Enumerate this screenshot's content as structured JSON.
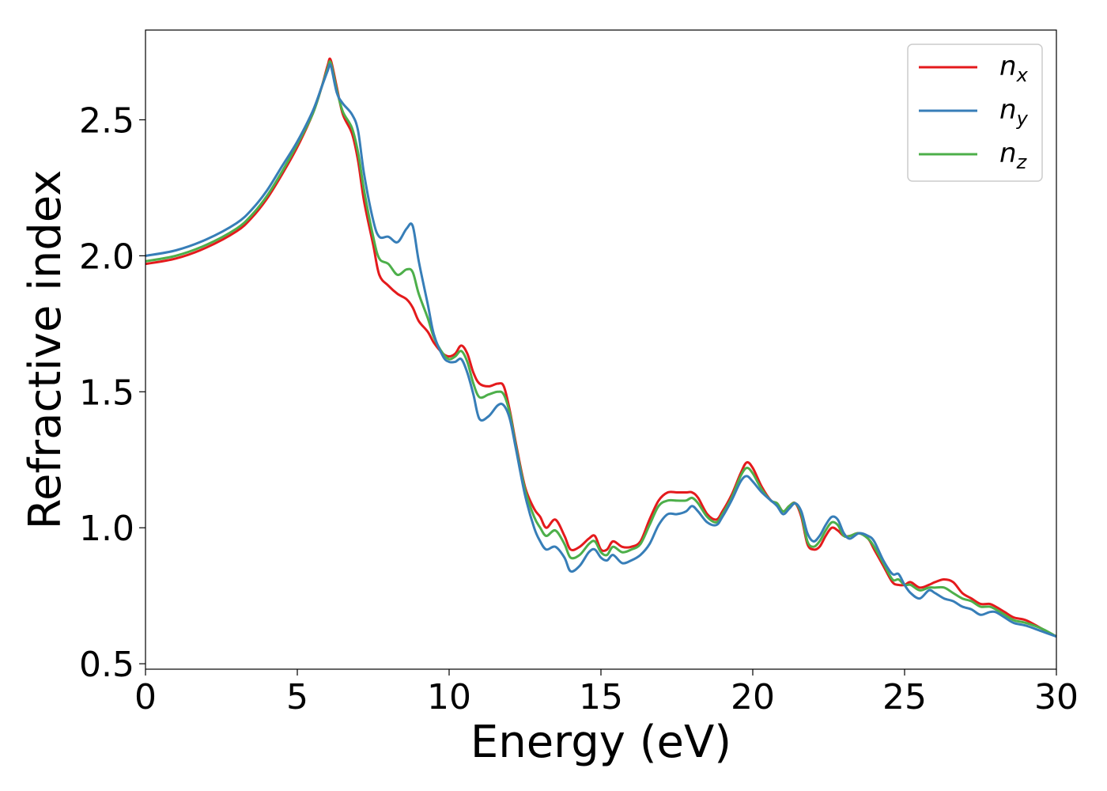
{
  "chart_data": {
    "type": "line",
    "title": "",
    "xlabel": "Energy (eV)",
    "ylabel": "Refractive index",
    "xlim": [
      0,
      30
    ],
    "ylim": [
      0.48,
      2.83
    ],
    "xticks": [
      0,
      5,
      10,
      15,
      20,
      25,
      30
    ],
    "xtick_labels": [
      "0",
      "5",
      "10",
      "15",
      "20",
      "25",
      "30"
    ],
    "yticks": [
      0.5,
      1.0,
      1.5,
      2.0,
      2.5
    ],
    "ytick_labels": [
      "0.5",
      "1.0",
      "1.5",
      "2.0",
      "2.5"
    ],
    "grid": false,
    "legend_position": "top-right",
    "series": [
      {
        "name": "n_x",
        "label_main": "n",
        "label_sub": "x",
        "color": "#e41a1c",
        "x": [
          0,
          1,
          2,
          3,
          3.5,
          4,
          4.5,
          5,
          5.5,
          5.8,
          6.0,
          6.1,
          6.3,
          6.5,
          6.8,
          7.0,
          7.2,
          7.5,
          7.7,
          8.0,
          8.3,
          8.6,
          8.8,
          9.0,
          9.3,
          9.5,
          9.8,
          10.0,
          10.2,
          10.4,
          10.6,
          10.8,
          11.0,
          11.3,
          11.6,
          11.8,
          12.0,
          12.2,
          12.5,
          12.8,
          13.0,
          13.2,
          13.5,
          13.8,
          14.0,
          14.3,
          14.6,
          14.8,
          15.0,
          15.2,
          15.4,
          15.7,
          16.0,
          16.3,
          16.6,
          16.9,
          17.2,
          17.5,
          17.8,
          18.0,
          18.2,
          18.5,
          18.8,
          19.0,
          19.3,
          19.6,
          19.8,
          20.0,
          20.3,
          20.6,
          20.8,
          21.0,
          21.2,
          21.4,
          21.6,
          21.8,
          22.0,
          22.2,
          22.4,
          22.6,
          22.8,
          23.0,
          23.2,
          23.5,
          23.8,
          24.0,
          24.3,
          24.6,
          24.8,
          25.0,
          25.2,
          25.5,
          25.8,
          26.0,
          26.3,
          26.6,
          26.9,
          27.2,
          27.5,
          27.8,
          28.0,
          28.3,
          28.6,
          29.0,
          29.5,
          30.0
        ],
        "y": [
          1.97,
          1.99,
          2.03,
          2.09,
          2.14,
          2.21,
          2.3,
          2.4,
          2.52,
          2.62,
          2.7,
          2.72,
          2.62,
          2.52,
          2.45,
          2.35,
          2.2,
          2.04,
          1.93,
          1.89,
          1.86,
          1.84,
          1.81,
          1.76,
          1.72,
          1.68,
          1.64,
          1.63,
          1.64,
          1.67,
          1.64,
          1.57,
          1.53,
          1.52,
          1.53,
          1.52,
          1.43,
          1.31,
          1.15,
          1.07,
          1.04,
          1.0,
          1.03,
          0.97,
          0.92,
          0.93,
          0.96,
          0.97,
          0.92,
          0.92,
          0.95,
          0.93,
          0.93,
          0.95,
          1.03,
          1.1,
          1.13,
          1.13,
          1.13,
          1.13,
          1.11,
          1.05,
          1.03,
          1.06,
          1.12,
          1.2,
          1.24,
          1.22,
          1.15,
          1.1,
          1.09,
          1.06,
          1.08,
          1.09,
          1.04,
          0.94,
          0.92,
          0.93,
          0.97,
          1.0,
          0.99,
          0.97,
          0.97,
          0.98,
          0.96,
          0.92,
          0.86,
          0.8,
          0.79,
          0.79,
          0.8,
          0.78,
          0.79,
          0.8,
          0.81,
          0.8,
          0.76,
          0.74,
          0.72,
          0.72,
          0.71,
          0.69,
          0.67,
          0.66,
          0.63,
          0.6
        ]
      },
      {
        "name": "n_y",
        "label_main": "n",
        "label_sub": "y",
        "color": "#377eb8",
        "x": [
          0,
          1,
          2,
          3,
          3.5,
          4,
          4.5,
          5,
          5.5,
          5.8,
          6.0,
          6.1,
          6.3,
          6.5,
          6.8,
          7.0,
          7.2,
          7.5,
          7.7,
          8.0,
          8.3,
          8.6,
          8.8,
          9.0,
          9.3,
          9.5,
          9.8,
          10.0,
          10.2,
          10.4,
          10.6,
          10.8,
          11.0,
          11.3,
          11.6,
          11.8,
          12.0,
          12.2,
          12.5,
          12.8,
          13.0,
          13.2,
          13.5,
          13.8,
          14.0,
          14.3,
          14.6,
          14.8,
          15.0,
          15.2,
          15.4,
          15.7,
          16.0,
          16.3,
          16.6,
          16.9,
          17.2,
          17.5,
          17.8,
          18.0,
          18.2,
          18.5,
          18.8,
          19.0,
          19.3,
          19.6,
          19.8,
          20.0,
          20.3,
          20.6,
          20.8,
          21.0,
          21.2,
          21.4,
          21.6,
          21.8,
          22.0,
          22.2,
          22.4,
          22.6,
          22.8,
          23.0,
          23.2,
          23.5,
          23.8,
          24.0,
          24.3,
          24.6,
          24.8,
          25.0,
          25.2,
          25.5,
          25.8,
          26.0,
          26.3,
          26.6,
          26.9,
          27.2,
          27.5,
          27.8,
          28.0,
          28.3,
          28.6,
          29.0,
          29.5,
          30.0
        ],
        "y": [
          2.0,
          2.02,
          2.06,
          2.12,
          2.17,
          2.24,
          2.33,
          2.42,
          2.53,
          2.62,
          2.68,
          2.7,
          2.6,
          2.56,
          2.52,
          2.46,
          2.3,
          2.13,
          2.07,
          2.07,
          2.05,
          2.1,
          2.11,
          1.98,
          1.82,
          1.71,
          1.63,
          1.61,
          1.61,
          1.62,
          1.57,
          1.49,
          1.4,
          1.41,
          1.45,
          1.45,
          1.4,
          1.29,
          1.12,
          1.0,
          0.95,
          0.92,
          0.93,
          0.89,
          0.84,
          0.86,
          0.91,
          0.92,
          0.89,
          0.88,
          0.9,
          0.87,
          0.88,
          0.9,
          0.94,
          1.01,
          1.05,
          1.05,
          1.06,
          1.08,
          1.06,
          1.02,
          1.01,
          1.04,
          1.1,
          1.17,
          1.19,
          1.17,
          1.13,
          1.1,
          1.08,
          1.05,
          1.07,
          1.09,
          1.06,
          0.98,
          0.95,
          0.97,
          1.01,
          1.04,
          1.03,
          0.98,
          0.96,
          0.98,
          0.97,
          0.95,
          0.88,
          0.83,
          0.83,
          0.79,
          0.76,
          0.74,
          0.77,
          0.76,
          0.74,
          0.73,
          0.71,
          0.7,
          0.68,
          0.69,
          0.69,
          0.67,
          0.65,
          0.64,
          0.62,
          0.6
        ]
      },
      {
        "name": "n_z",
        "label_main": "n",
        "label_sub": "z",
        "color": "#4daf4a",
        "x": [
          0,
          1,
          2,
          3,
          3.5,
          4,
          4.5,
          5,
          5.5,
          5.8,
          6.0,
          6.1,
          6.3,
          6.5,
          6.8,
          7.0,
          7.2,
          7.5,
          7.7,
          8.0,
          8.3,
          8.6,
          8.8,
          9.0,
          9.3,
          9.5,
          9.8,
          10.0,
          10.2,
          10.4,
          10.6,
          10.8,
          11.0,
          11.3,
          11.6,
          11.8,
          12.0,
          12.2,
          12.5,
          12.8,
          13.0,
          13.2,
          13.5,
          13.8,
          14.0,
          14.3,
          14.6,
          14.8,
          15.0,
          15.2,
          15.4,
          15.7,
          16.0,
          16.3,
          16.6,
          16.9,
          17.2,
          17.5,
          17.8,
          18.0,
          18.2,
          18.5,
          18.8,
          19.0,
          19.3,
          19.6,
          19.8,
          20.0,
          20.3,
          20.6,
          20.8,
          21.0,
          21.2,
          21.4,
          21.6,
          21.8,
          22.0,
          22.2,
          22.4,
          22.6,
          22.8,
          23.0,
          23.2,
          23.5,
          23.8,
          24.0,
          24.3,
          24.6,
          24.8,
          25.0,
          25.2,
          25.5,
          25.8,
          26.0,
          26.3,
          26.6,
          26.9,
          27.2,
          27.5,
          27.8,
          28.0,
          28.3,
          28.6,
          29.0,
          29.5,
          30.0
        ],
        "y": [
          1.98,
          2.0,
          2.04,
          2.1,
          2.15,
          2.22,
          2.31,
          2.41,
          2.52,
          2.62,
          2.69,
          2.71,
          2.61,
          2.53,
          2.47,
          2.38,
          2.24,
          2.07,
          1.99,
          1.97,
          1.93,
          1.95,
          1.94,
          1.86,
          1.77,
          1.7,
          1.64,
          1.62,
          1.63,
          1.65,
          1.61,
          1.53,
          1.48,
          1.49,
          1.5,
          1.49,
          1.42,
          1.3,
          1.14,
          1.04,
          1.0,
          0.97,
          0.99,
          0.94,
          0.89,
          0.9,
          0.94,
          0.95,
          0.91,
          0.9,
          0.93,
          0.91,
          0.92,
          0.94,
          1.01,
          1.08,
          1.1,
          1.1,
          1.1,
          1.11,
          1.09,
          1.04,
          1.02,
          1.05,
          1.11,
          1.19,
          1.22,
          1.2,
          1.14,
          1.1,
          1.09,
          1.06,
          1.08,
          1.09,
          1.05,
          0.95,
          0.93,
          0.95,
          0.99,
          1.02,
          1.01,
          0.97,
          0.97,
          0.98,
          0.96,
          0.93,
          0.87,
          0.81,
          0.81,
          0.79,
          0.79,
          0.77,
          0.78,
          0.78,
          0.78,
          0.76,
          0.74,
          0.73,
          0.71,
          0.71,
          0.7,
          0.68,
          0.66,
          0.65,
          0.63,
          0.6
        ]
      }
    ]
  }
}
